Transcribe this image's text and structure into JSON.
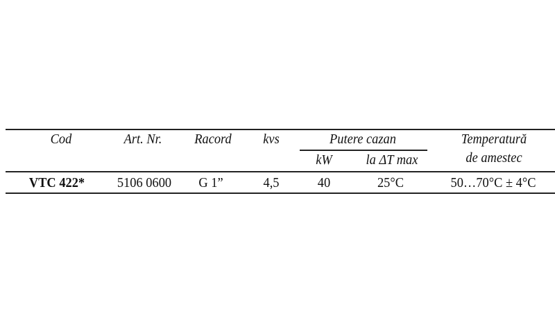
{
  "table": {
    "headers": {
      "cod": "Cod",
      "art_nr": "Art. Nr.",
      "racord": "Racord",
      "kvs": "kvs",
      "putere_cazan": "Putere cazan",
      "kw": "kW",
      "la_dt_max": "la ΔT max",
      "temperatura_line1": "Temperatură",
      "temperatura_line2": "de amestec"
    },
    "rows": [
      {
        "cod": "VTC 422*",
        "art_nr": "5106 0600",
        "racord": "G 1”",
        "kvs": "4,5",
        "kw": "40",
        "la_dt_max": "25°C",
        "temperatura": "50…70°C ± 4°C"
      }
    ]
  }
}
